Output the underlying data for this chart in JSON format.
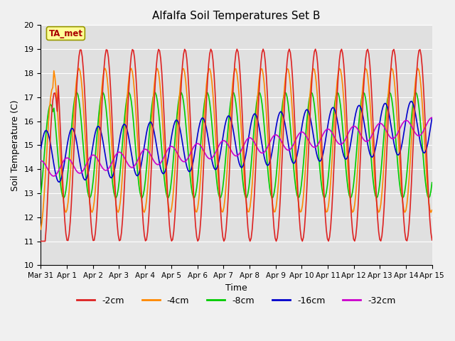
{
  "title": "Alfalfa Soil Temperatures Set B",
  "xlabel": "Time",
  "ylabel": "Soil Temperature (C)",
  "ylim": [
    10.0,
    20.0
  ],
  "yticks": [
    10.0,
    11.0,
    12.0,
    13.0,
    14.0,
    15.0,
    16.0,
    17.0,
    18.0,
    19.0,
    20.0
  ],
  "bg_color": "#e0e0e0",
  "fig_color": "#f0f0f0",
  "series_colors": {
    "-2cm": "#dd2222",
    "-4cm": "#ff8800",
    "-8cm": "#00cc00",
    "-16cm": "#0000cc",
    "-32cm": "#cc00cc"
  },
  "ta_met_box_color": "#ffff99",
  "ta_met_text_color": "#aa0000",
  "ta_met_edge_color": "#999900",
  "x_tick_labels": [
    "Mar 31",
    "Apr 1",
    "Apr 2",
    "Apr 3",
    "Apr 4",
    "Apr 5",
    "Apr 6",
    "Apr 7",
    "Apr 8",
    "Apr 9",
    "Apr 10",
    "Apr 11",
    "Apr 12",
    "Apr 13",
    "Apr 14",
    "Apr 15"
  ],
  "legend_labels": [
    "-2cm",
    "-4cm",
    "-8cm",
    "-16cm",
    "-32cm"
  ]
}
